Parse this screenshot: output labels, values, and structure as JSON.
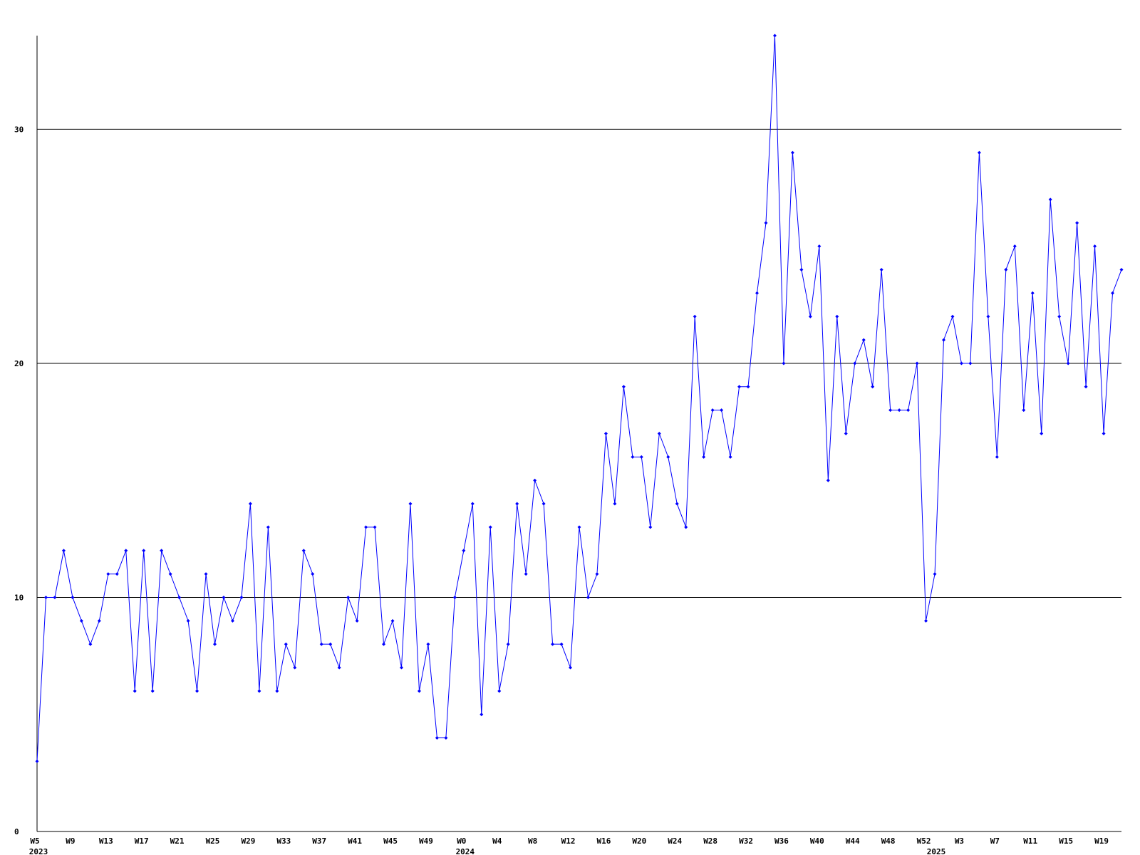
{
  "chart_data": {
    "type": "line",
    "categories": [
      "W5",
      null,
      null,
      null,
      "W9",
      null,
      null,
      null,
      "W13",
      null,
      null,
      null,
      "W17",
      null,
      null,
      null,
      "W21",
      null,
      null,
      null,
      "W25",
      null,
      null,
      null,
      "W29",
      null,
      null,
      null,
      "W33",
      null,
      null,
      null,
      "W37",
      null,
      null,
      null,
      "W41",
      null,
      null,
      null,
      "W45",
      null,
      null,
      null,
      "W49",
      null,
      null,
      null,
      "W0",
      null,
      null,
      null,
      "W4",
      null,
      null,
      null,
      "W8",
      null,
      null,
      null,
      "W12",
      null,
      null,
      null,
      "W16",
      null,
      null,
      null,
      "W20",
      null,
      null,
      null,
      "W24",
      null,
      null,
      null,
      "W28",
      null,
      null,
      null,
      "W32",
      null,
      null,
      null,
      "W36",
      null,
      null,
      null,
      "W40",
      null,
      null,
      null,
      "W44",
      null,
      null,
      null,
      "W48",
      null,
      null,
      null,
      "W52",
      null,
      null,
      null,
      "W3",
      null,
      null,
      null,
      "W7",
      null,
      null,
      null,
      "W11",
      null,
      null,
      null,
      "W15",
      null,
      null,
      null,
      "W19",
      null,
      null
    ],
    "category_years": [
      "2023",
      null,
      null,
      null,
      null,
      null,
      null,
      null,
      null,
      null,
      null,
      null,
      null,
      null,
      null,
      null,
      null,
      null,
      null,
      null,
      null,
      null,
      null,
      null,
      null,
      null,
      null,
      null,
      null,
      null,
      null,
      null,
      null,
      null,
      null,
      null,
      null,
      null,
      null,
      null,
      null,
      null,
      null,
      null,
      null,
      null,
      null,
      null,
      "2024",
      null,
      null,
      null,
      null,
      null,
      null,
      null,
      null,
      null,
      null,
      null,
      null,
      null,
      null,
      null,
      null,
      null,
      null,
      null,
      null,
      null,
      null,
      null,
      null,
      null,
      null,
      null,
      null,
      null,
      null,
      null,
      null,
      null,
      null,
      null,
      null,
      null,
      null,
      null,
      null,
      null,
      null,
      null,
      null,
      null,
      null,
      null,
      null,
      null,
      null,
      null,
      null,
      "2025",
      null,
      null,
      null,
      null,
      null,
      null,
      null,
      null,
      null,
      null,
      null,
      null,
      null,
      null,
      null,
      null,
      null,
      null,
      null,
      null,
      null
    ],
    "series": [
      {
        "color": "#0000ff",
        "values": [
          3,
          10,
          10,
          12,
          10,
          9,
          8,
          9,
          11,
          11,
          12,
          6,
          12,
          6,
          12,
          11,
          10,
          9,
          6,
          11,
          8,
          10,
          9,
          10,
          14,
          6,
          13,
          6,
          8,
          7,
          12,
          11,
          8,
          8,
          7,
          10,
          9,
          13,
          13,
          8,
          9,
          7,
          14,
          6,
          8,
          4,
          4,
          10,
          12,
          14,
          5,
          13,
          6,
          8,
          14,
          11,
          15,
          14,
          8,
          8,
          7,
          13,
          10,
          11,
          17,
          14,
          19,
          16,
          16,
          13,
          17,
          16,
          14,
          13,
          22,
          16,
          18,
          18,
          16,
          19,
          19,
          23,
          26,
          34,
          20,
          29,
          24,
          22,
          25,
          15,
          22,
          17,
          20,
          21,
          19,
          24,
          18,
          18,
          18,
          20,
          9,
          11,
          21,
          22,
          20,
          20,
          29,
          22,
          16,
          24,
          25,
          18,
          23,
          17,
          27,
          22,
          20,
          26,
          19,
          25,
          17,
          23,
          24
        ]
      }
    ],
    "ylim": [
      0,
      34
    ],
    "yticks": [
      0,
      10,
      20,
      30
    ],
    "grid": true
  }
}
